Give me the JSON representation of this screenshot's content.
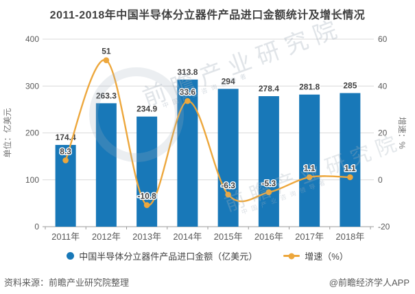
{
  "title": "2011-2018年中国半导体分立器件产品进口金额统计及增长情况",
  "chart_data": {
    "type": "combo",
    "categories": [
      "2011年",
      "2012年",
      "2013年",
      "2014年",
      "2015年",
      "2016年",
      "2017年",
      "2018年"
    ],
    "series": [
      {
        "name": "中国半导体分立器件产品进口金额（亿美元）",
        "type": "bar",
        "yaxis": "left",
        "color": "#1878b8",
        "values": [
          174.4,
          263.3,
          234.9,
          313.8,
          294,
          278.4,
          281.8,
          285
        ]
      },
      {
        "name": "增速（%）",
        "type": "line",
        "yaxis": "right",
        "color": "#eda73c",
        "values": [
          8.3,
          51,
          -10.8,
          33.6,
          -6.3,
          -5.3,
          1.1,
          1.1
        ]
      }
    ],
    "left_axis": {
      "title": "单位：亿美元",
      "min": 0,
      "max": 400,
      "ticks": [
        0,
        100,
        200,
        300,
        400
      ]
    },
    "right_axis": {
      "title": "增速：%",
      "min": -20,
      "max": 60,
      "ticks": [
        -20,
        0,
        20,
        40,
        60
      ]
    },
    "grid": true,
    "legend_position": "bottom"
  },
  "legend": {
    "items": [
      {
        "label": "中国半导体分立器件产品进口金额（亿美元）",
        "marker": "circle",
        "color": "#1878b8"
      },
      {
        "label": "增速（%）",
        "marker": "line-dot",
        "color": "#eda73c"
      }
    ]
  },
  "footer": {
    "source": "资料来源：前瞻产业研究院整理",
    "brand": "@前瞻经济学人APP"
  },
  "watermarks": {
    "main": "前瞻产业研究院",
    "sub": "中国产业咨询领导者"
  },
  "colors": {
    "bar": "#1878b8",
    "line": "#eda73c",
    "grid": "#d9d9d9",
    "axis": "#999999",
    "text": "#404040",
    "tick_text": "#595959"
  }
}
